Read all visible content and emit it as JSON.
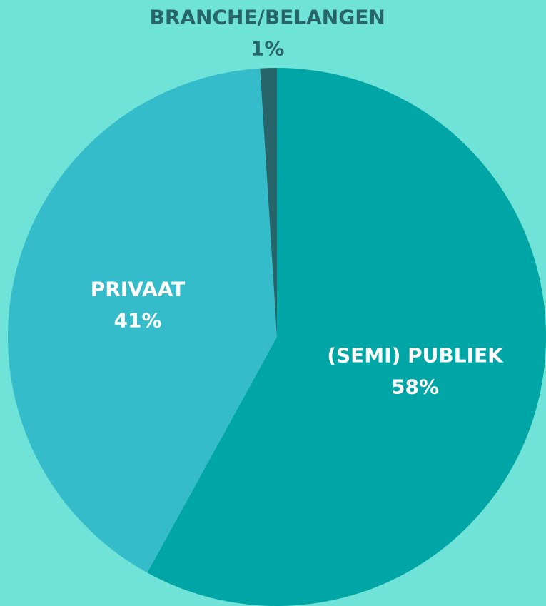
{
  "chart_data": {
    "type": "pie",
    "categories": [
      "(SEMI) PUBLIEK",
      "PRIVAAT",
      "BRANCHE/BELANGEN"
    ],
    "values": [
      58,
      41,
      1
    ],
    "value_labels": [
      "58%",
      "41%",
      "1%"
    ],
    "colors": [
      "#00a5a5",
      "#35bccb",
      "#27656b"
    ]
  }
}
